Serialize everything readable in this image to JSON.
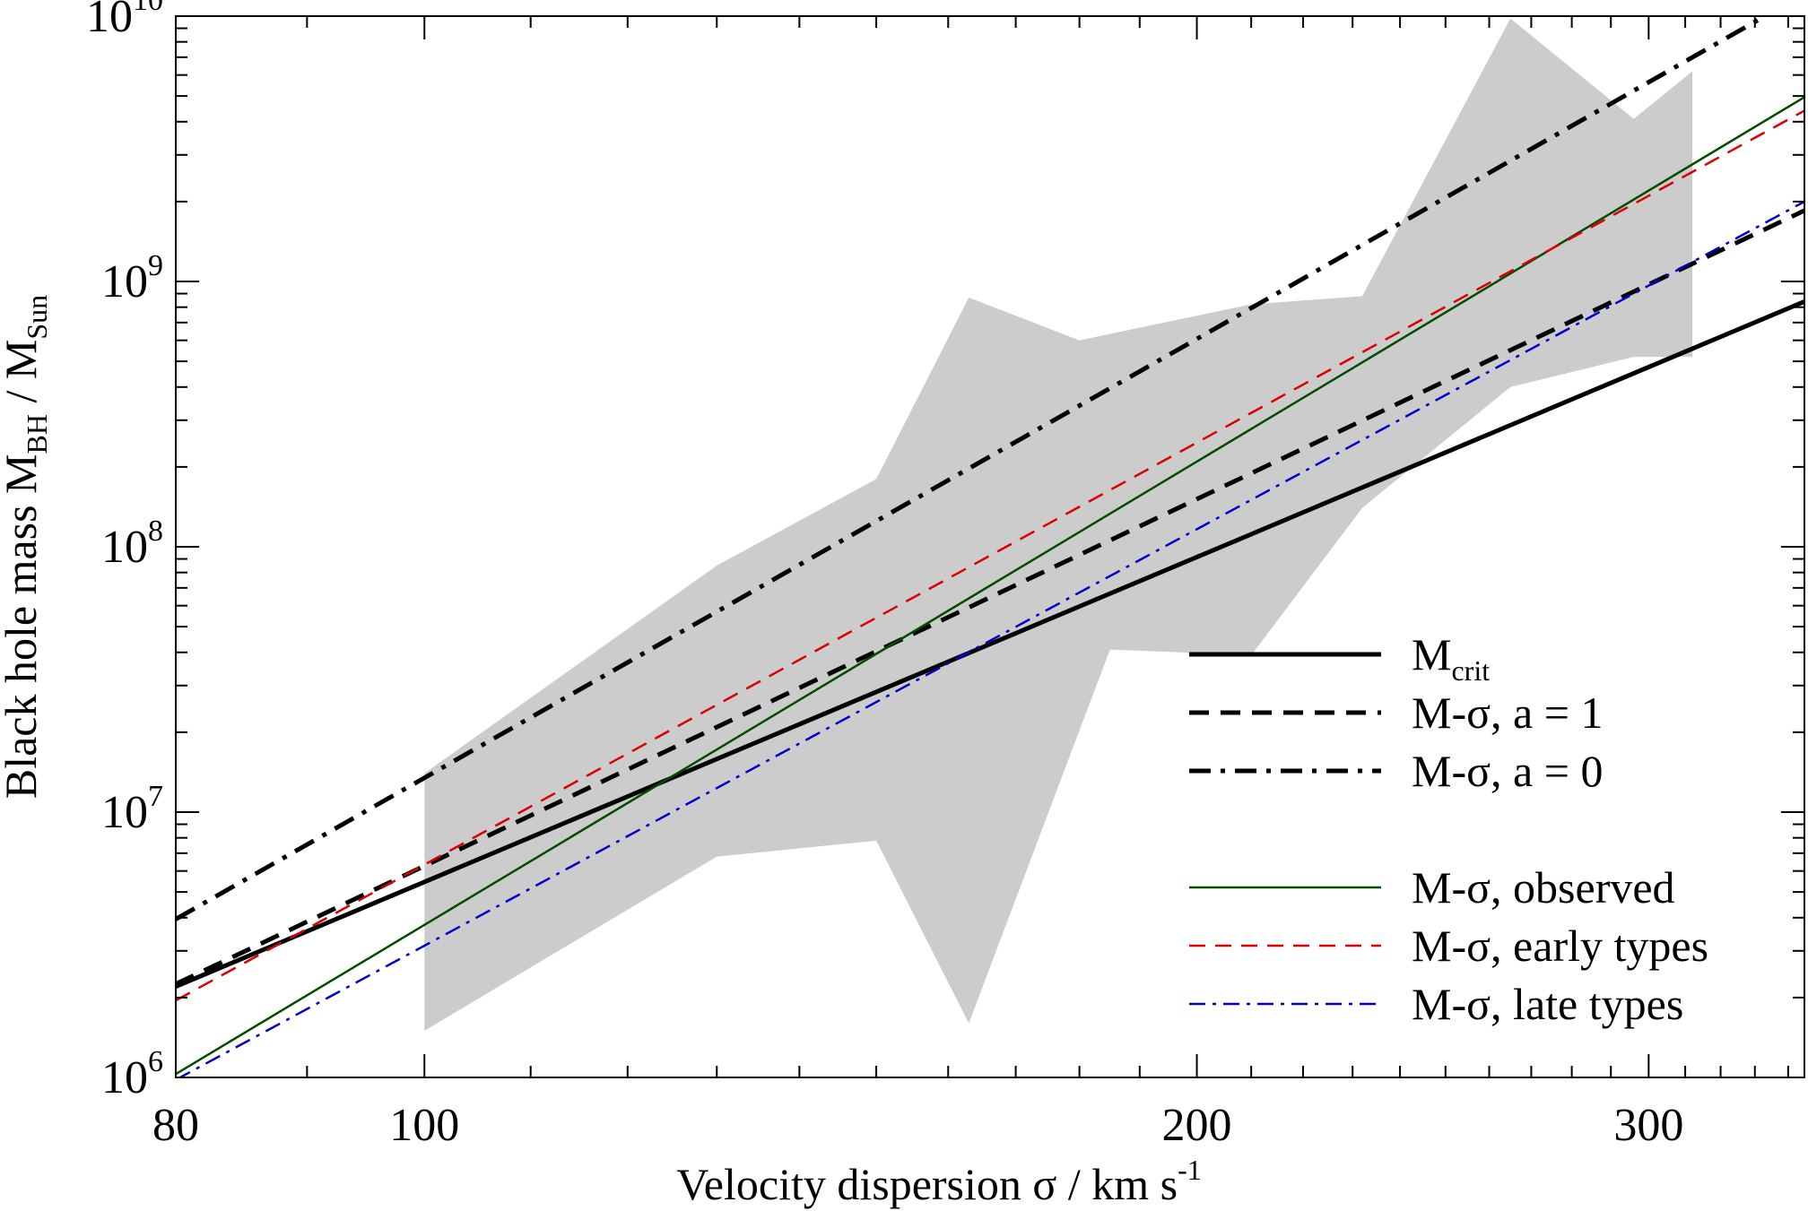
{
  "chart_data": {
    "type": "line",
    "x_scale": "log",
    "y_scale": "log",
    "xlim": [
      80,
      345
    ],
    "ylim": [
      1000000,
      10000000000
    ],
    "grid": false,
    "xlabel": "Velocity dispersion σ / km s",
    "xlabel_sup": "-1",
    "ylabel": "Black hole mass M",
    "ylabel_sub": "BH",
    "ylabel_mid": " / M",
    "ylabel_sub2": "Sun",
    "x_ticks": [
      {
        "value": 80,
        "label": "80"
      },
      {
        "value": 100,
        "label": "100"
      },
      {
        "value": 200,
        "label": "200"
      },
      {
        "value": 300,
        "label": "300"
      }
    ],
    "y_ticks": [
      {
        "value": 1000000,
        "base": "10",
        "exp": "6"
      },
      {
        "value": 10000000,
        "base": "10",
        "exp": "7"
      },
      {
        "value": 100000000,
        "base": "10",
        "exp": "8"
      },
      {
        "value": 1000000000,
        "base": "10",
        "exp": "9"
      },
      {
        "value": 10000000000,
        "base": "10",
        "exp": "10"
      }
    ],
    "band": {
      "color": "#cccccc",
      "upper": [
        [
          100,
          14000000
        ],
        [
          130,
          85000000
        ],
        [
          150,
          180000000
        ],
        [
          163,
          870000000
        ],
        [
          180,
          600000000
        ],
        [
          210,
          820000000
        ],
        [
          232,
          880000000
        ],
        [
          265,
          9800000000
        ],
        [
          296,
          4100000000
        ],
        [
          312,
          6200000000
        ]
      ],
      "lower": [
        [
          312,
          520000000
        ],
        [
          296,
          520000000
        ],
        [
          265,
          400000000
        ],
        [
          232,
          140000000
        ],
        [
          210,
          39000000
        ],
        [
          185,
          41000000
        ],
        [
          163,
          1600000
        ],
        [
          150,
          7800000
        ],
        [
          130,
          6800000
        ],
        [
          100,
          1500000
        ]
      ]
    },
    "series": [
      {
        "name": "M",
        "name_sub": "crit",
        "color": "#000000",
        "width": 5,
        "dash": "",
        "x": [
          80,
          345
        ],
        "y": [
          2200000,
          840000000
        ]
      },
      {
        "name": "M-σ, a = 1",
        "color": "#000000",
        "width": 5,
        "dash": "22 13",
        "x": [
          80,
          345
        ],
        "y": [
          2250000,
          1850000000
        ]
      },
      {
        "name": "M-σ, a = 0",
        "color": "#000000",
        "width": 5,
        "dash": "24 11 5 11",
        "x": [
          80,
          333
        ],
        "y": [
          3950000,
          10000000000
        ]
      },
      {
        "name": "M-σ, observed",
        "color": "#004d00",
        "width": 2.5,
        "dash": "",
        "x": [
          80,
          345
        ],
        "y": [
          1030000,
          4950000000
        ]
      },
      {
        "name": "M-σ, early types",
        "color": "#dd0000",
        "width": 2.5,
        "dash": "18 11",
        "x": [
          80,
          345
        ],
        "y": [
          1950000,
          4400000000
        ]
      },
      {
        "name": "M-σ, late types",
        "color": "#0000cc",
        "width": 2.5,
        "dash": "18 8 4 8",
        "x": [
          80,
          345
        ],
        "y": [
          980000,
          2000000000
        ]
      }
    ],
    "legend_position": "bottom-right",
    "legend_gap_after_index": 2
  }
}
